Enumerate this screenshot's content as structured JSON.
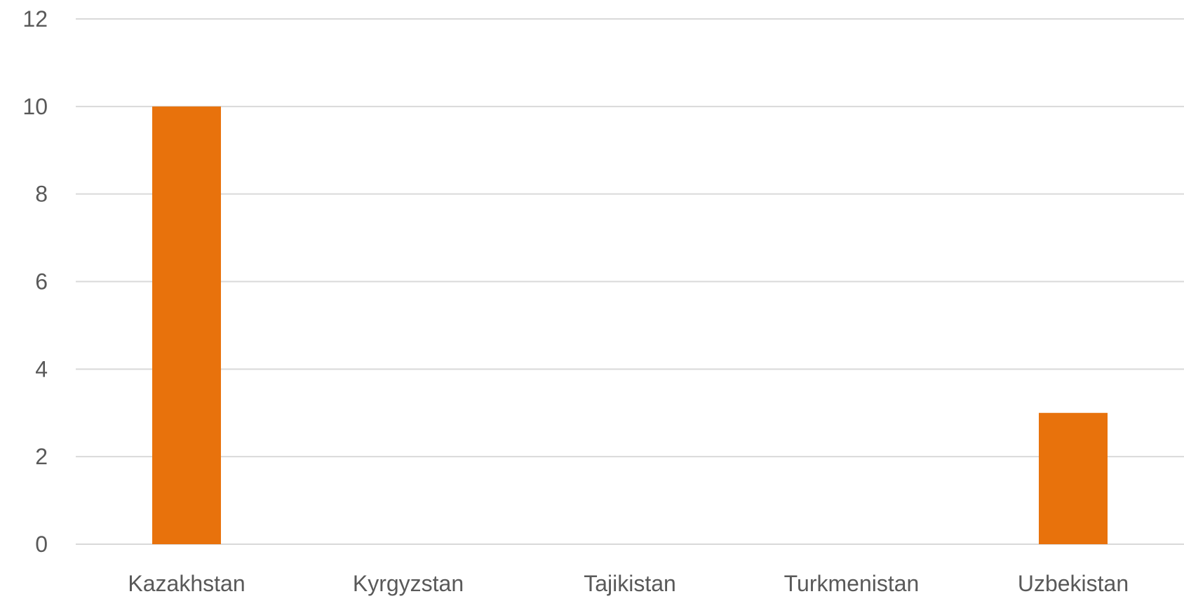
{
  "chart_data": {
    "type": "bar",
    "categories": [
      "Kazakhstan",
      "Kyrgyzstan",
      "Tajikistan",
      "Turkmenistan",
      "Uzbekistan"
    ],
    "values": [
      10,
      0,
      0,
      0,
      3
    ],
    "ylim": [
      0,
      12
    ],
    "yticks": [
      0,
      2,
      4,
      6,
      8,
      10,
      12
    ],
    "grid": true,
    "bar_color": "#e8720c",
    "title": "",
    "xlabel": "",
    "ylabel": ""
  }
}
